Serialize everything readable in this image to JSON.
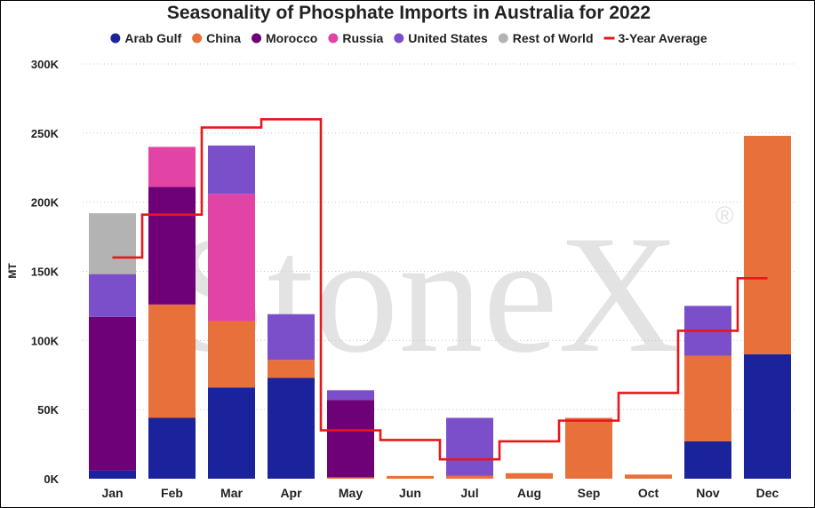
{
  "chart_data": {
    "type": "bar",
    "stacked": true,
    "title": "Seasonality of Phosphate Imports in Australia for 2022",
    "ylabel": "MT",
    "xlabel": "",
    "ylim": [
      0,
      300000
    ],
    "yticks": [
      {
        "value": 0,
        "label": "0K"
      },
      {
        "value": 50000,
        "label": "50K"
      },
      {
        "value": 100000,
        "label": "100K"
      },
      {
        "value": 150000,
        "label": "150K"
      },
      {
        "value": 200000,
        "label": "200K"
      },
      {
        "value": 250000,
        "label": "250K"
      },
      {
        "value": 300000,
        "label": "300K"
      }
    ],
    "grid": true,
    "legend_position": "top",
    "categories": [
      "Jan",
      "Feb",
      "Mar",
      "Apr",
      "May",
      "Jun",
      "Jul",
      "Aug",
      "Sep",
      "Oct",
      "Nov",
      "Dec"
    ],
    "series": [
      {
        "name": "Arab Gulf",
        "color": "#1a239c",
        "values": [
          6000,
          44000,
          66000,
          73000,
          0,
          0,
          0,
          0,
          0,
          0,
          27000,
          90000
        ]
      },
      {
        "name": "China",
        "color": "#e8703a",
        "values": [
          0,
          82000,
          48000,
          13000,
          1000,
          2000,
          2000,
          4000,
          44000,
          3000,
          62000,
          158000
        ]
      },
      {
        "name": "Morocco",
        "color": "#6e0078",
        "values": [
          111000,
          85000,
          0,
          0,
          56000,
          0,
          0,
          0,
          0,
          0,
          0,
          0
        ]
      },
      {
        "name": "Russia",
        "color": "#e244a6",
        "values": [
          0,
          29000,
          92000,
          0,
          0,
          0,
          0,
          0,
          0,
          0,
          0,
          0
        ]
      },
      {
        "name": "United States",
        "color": "#7b4fc9",
        "values": [
          31000,
          0,
          35000,
          33000,
          7000,
          0,
          42000,
          0,
          0,
          0,
          36000,
          0
        ]
      },
      {
        "name": "Rest of World",
        "color": "#b3b3b3",
        "values": [
          44000,
          0,
          0,
          0,
          0,
          0,
          0,
          0,
          0,
          0,
          0,
          0
        ]
      }
    ],
    "line_series": {
      "name": "3-Year Average",
      "color": "#e8161b",
      "values": [
        160000,
        191000,
        254000,
        260000,
        35000,
        28000,
        14000,
        27000,
        42000,
        62000,
        107000,
        145000
      ]
    }
  },
  "watermark": {
    "text": "StoneX",
    "mark": "®"
  }
}
